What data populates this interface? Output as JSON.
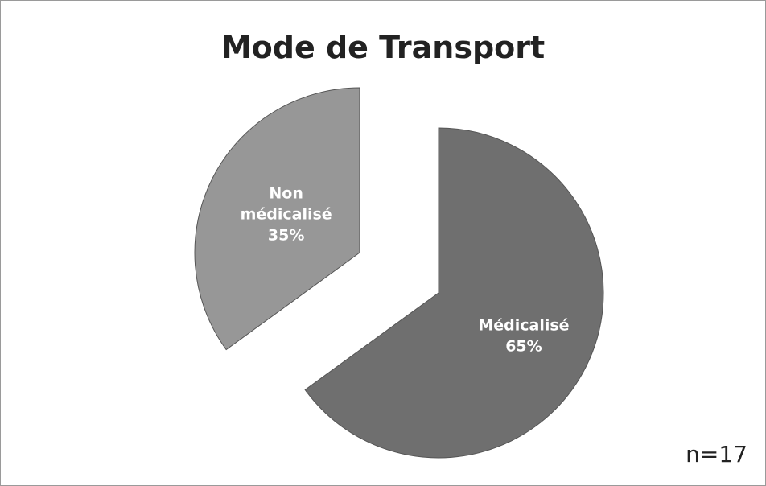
{
  "chart_data": {
    "type": "pie",
    "title": "Mode de Transport",
    "categories": [
      "Médicalisé",
      "Non médicalisé"
    ],
    "values": [
      65,
      35
    ],
    "value_labels": [
      "65%",
      "35%"
    ],
    "colors": [
      "#6f6f6f",
      "#979797"
    ],
    "annotation": "n=17"
  }
}
